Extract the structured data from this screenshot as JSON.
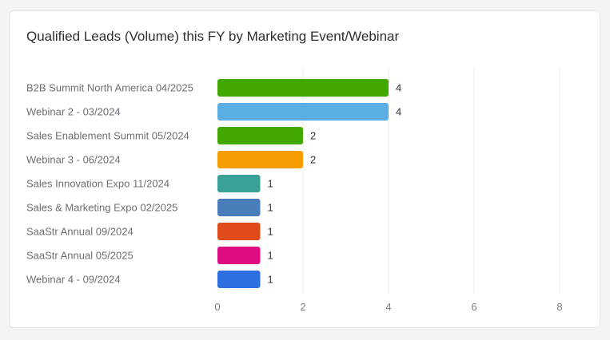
{
  "card": {
    "title": "Qualified Leads (Volume) this FY by Marketing Event/Webinar"
  },
  "chart_data": {
    "type": "bar",
    "orientation": "horizontal",
    "title": "Qualified Leads (Volume) this FY by Marketing Event/Webinar",
    "categories": [
      "B2B Summit North America 04/2025",
      "Webinar 2 - 03/2024",
      "Sales Enablement Summit 05/2024",
      "Webinar 3 - 06/2024",
      "Sales Innovation Expo 11/2024",
      "Sales & Marketing Expo 02/2025",
      "SaaStr Annual 09/2024",
      "SaaStr Annual 05/2025",
      "Webinar 4 - 09/2024"
    ],
    "values": [
      4,
      4,
      2,
      2,
      1,
      1,
      1,
      1,
      1
    ],
    "colors": [
      "#41a800",
      "#5aaee3",
      "#41a800",
      "#f69b00",
      "#3aa198",
      "#4a7ebb",
      "#e04b1c",
      "#df0d84",
      "#2d6fe0"
    ],
    "xlim": [
      0,
      8
    ],
    "xticks": [
      0,
      2,
      4,
      6,
      8
    ],
    "grid": true,
    "legend": "none"
  }
}
